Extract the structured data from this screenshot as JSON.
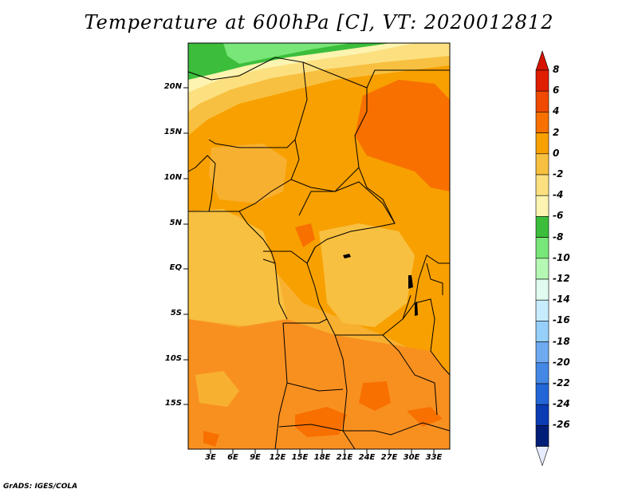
{
  "title": "Temperature at 600hPa [C], VT: 2020012812",
  "credit": "GrADS: IGES/COLA",
  "axes": {
    "lat_labels": [
      "20N",
      "15N",
      "10N",
      "5N",
      "EQ",
      "5S",
      "10S",
      "15S"
    ],
    "lon_labels": [
      "3E",
      "6E",
      "9E",
      "12E",
      "15E",
      "18E",
      "21E",
      "24E",
      "27E",
      "30E",
      "33E"
    ]
  },
  "colorbar": {
    "labels": [
      "8",
      "6",
      "4",
      "2",
      "0",
      "-2",
      "-4",
      "-6",
      "-8",
      "-10",
      "-12",
      "-14",
      "-16",
      "-18",
      "-20",
      "-22",
      "-24",
      "-26"
    ],
    "colors": [
      "#e01e00",
      "#f04a00",
      "#f87000",
      "#f8a000",
      "#f8c040",
      "#fce080",
      "#fcf4b0",
      "#3cbe3c",
      "#78e678",
      "#b4f8b4",
      "#e0fcf0",
      "#c8ecff",
      "#96d0fa",
      "#6eaaf0",
      "#4488e6",
      "#2266d8",
      "#0a3cb4",
      "#001e78"
    ],
    "top_color": "#d41400",
    "bottom_color": "#e6ebff"
  }
}
